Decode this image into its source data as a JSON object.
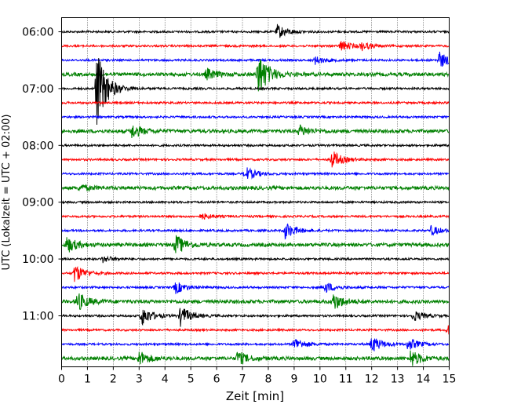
{
  "chart_data": {
    "type": "line",
    "title": "",
    "xlabel": "Zeit  [min]",
    "ylabel": "UTC (Lokalzeit = UTC + 02:00)",
    "xlim": [
      0,
      15
    ],
    "x_ticks": [
      0,
      1,
      2,
      3,
      4,
      5,
      6,
      7,
      8,
      9,
      10,
      11,
      12,
      13,
      14,
      15
    ],
    "y_ticks": [
      "06:00",
      "07:00",
      "08:00",
      "09:00",
      "10:00",
      "11:00"
    ],
    "trace_interval_min": 15,
    "grid": "vertical-dotted",
    "trace_colors": [
      "#000000",
      "#ff0000",
      "#0000ff",
      "#008000"
    ],
    "series": [
      {
        "start": "06:00",
        "events": [
          {
            "t": 8.35,
            "amp": 9
          }
        ]
      },
      {
        "start": "06:15",
        "events": [
          {
            "t": 10.8,
            "amp": 7
          },
          {
            "t": 11.6,
            "amp": 5
          }
        ]
      },
      {
        "start": "06:30",
        "events": [
          {
            "t": 9.8,
            "amp": 5
          },
          {
            "t": 14.6,
            "amp": 11
          }
        ]
      },
      {
        "start": "06:45",
        "events": [
          {
            "t": 5.6,
            "amp": 7
          },
          {
            "t": 7.6,
            "amp": 30
          }
        ]
      },
      {
        "start": "07:00",
        "events": [
          {
            "t": 1.35,
            "amp": 52
          }
        ]
      },
      {
        "start": "07:15",
        "events": []
      },
      {
        "start": "07:30",
        "events": []
      },
      {
        "start": "07:45",
        "events": [
          {
            "t": 2.7,
            "amp": 9
          },
          {
            "t": 9.2,
            "amp": 7
          }
        ]
      },
      {
        "start": "08:00",
        "events": []
      },
      {
        "start": "08:15",
        "events": [
          {
            "t": 10.45,
            "amp": 12
          }
        ]
      },
      {
        "start": "08:30",
        "events": [
          {
            "t": 7.1,
            "amp": 9
          }
        ]
      },
      {
        "start": "08:45",
        "events": [
          {
            "t": 0.7,
            "amp": 4
          }
        ]
      },
      {
        "start": "09:00",
        "events": []
      },
      {
        "start": "09:15",
        "events": [
          {
            "t": 5.4,
            "amp": 4
          }
        ]
      },
      {
        "start": "09:30",
        "events": [
          {
            "t": 8.65,
            "amp": 11
          },
          {
            "t": 14.3,
            "amp": 6
          }
        ]
      },
      {
        "start": "09:45",
        "events": [
          {
            "t": 0.2,
            "amp": 10
          },
          {
            "t": 4.4,
            "amp": 13
          }
        ]
      },
      {
        "start": "10:00",
        "events": [
          {
            "t": 1.6,
            "amp": 4
          }
        ]
      },
      {
        "start": "10:15",
        "events": [
          {
            "t": 0.5,
            "amp": 12
          }
        ]
      },
      {
        "start": "10:30",
        "events": [
          {
            "t": 4.4,
            "amp": 8
          },
          {
            "t": 10.2,
            "amp": 7
          }
        ]
      },
      {
        "start": "10:45",
        "events": [
          {
            "t": 0.6,
            "amp": 12
          },
          {
            "t": 10.5,
            "amp": 11
          }
        ]
      },
      {
        "start": "11:00",
        "events": [
          {
            "t": 3.1,
            "amp": 13
          },
          {
            "t": 4.6,
            "amp": 13
          },
          {
            "t": 13.6,
            "amp": 7
          }
        ]
      },
      {
        "start": "11:15",
        "events": [
          {
            "t": 14.95,
            "amp": 6
          }
        ]
      },
      {
        "start": "11:30",
        "events": [
          {
            "t": 9.0,
            "amp": 9
          },
          {
            "t": 12.0,
            "amp": 11
          },
          {
            "t": 13.4,
            "amp": 8
          }
        ]
      },
      {
        "start": "11:45",
        "events": [
          {
            "t": 3.0,
            "amp": 9
          },
          {
            "t": 6.8,
            "amp": 9
          },
          {
            "t": 13.5,
            "amp": 11
          }
        ]
      }
    ]
  }
}
